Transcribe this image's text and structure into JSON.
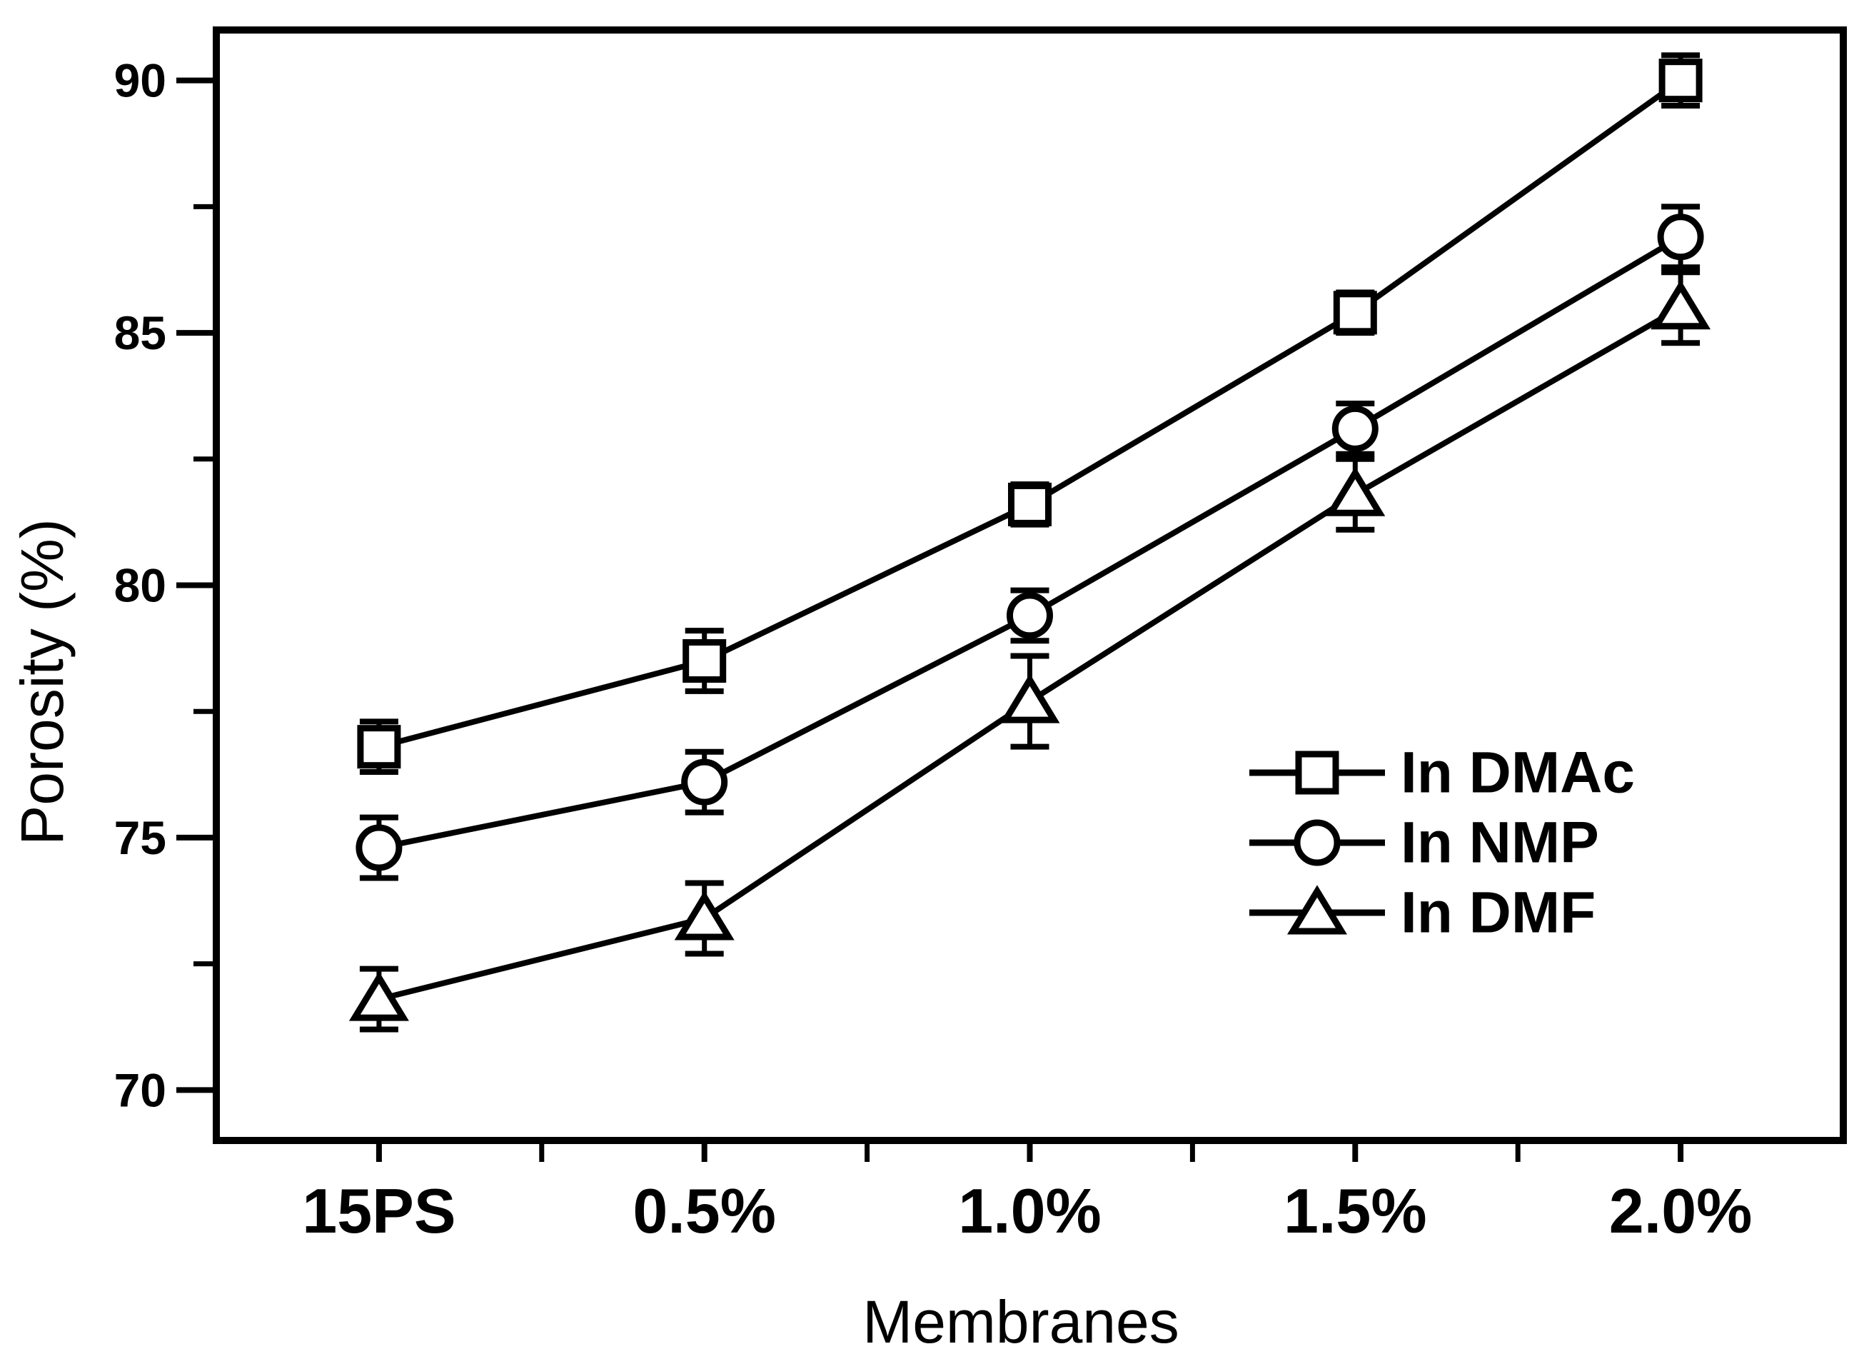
{
  "figure": {
    "background_color": "#ffffff",
    "ink_color": "#000000"
  },
  "chart_data": {
    "type": "line",
    "title": "",
    "xlabel": "Membranes",
    "ylabel": "Porosity (%)",
    "categories": [
      "15PS",
      "0.5%",
      "1.0%",
      "1.5%",
      "2.0%"
    ],
    "series": [
      {
        "name": "In DMAc",
        "marker": "square",
        "values": [
          76.8,
          78.5,
          81.6,
          85.4,
          90.0
        ],
        "errors": [
          0.5,
          0.6,
          0.4,
          0.4,
          0.5
        ]
      },
      {
        "name": "In NMP",
        "marker": "circle",
        "values": [
          74.8,
          76.1,
          79.4,
          83.1,
          86.9
        ],
        "errors": [
          0.6,
          0.6,
          0.5,
          0.5,
          0.6
        ]
      },
      {
        "name": "In DMF",
        "marker": "triangle",
        "values": [
          71.8,
          73.4,
          77.7,
          81.8,
          85.5
        ],
        "errors": [
          0.6,
          0.7,
          0.9,
          0.7,
          0.7
        ]
      }
    ],
    "y_axis": {
      "min": 69,
      "max": 91,
      "major_ticks": [
        70,
        75,
        80,
        85,
        90
      ],
      "minor_ticks": [
        72.5,
        77.5,
        82.5,
        87.5
      ]
    },
    "x_axis": {
      "minor_ticks_between_categories": true
    },
    "legend": {
      "position": "right-middle"
    },
    "grid": false,
    "line_color": "#000000",
    "marker_fill": "#ffffff"
  }
}
